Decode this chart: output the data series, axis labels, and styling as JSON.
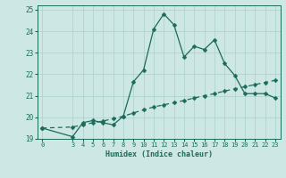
{
  "xlabel": "Humidex (Indice chaleur)",
  "bg_color": "#cde8e4",
  "grid_color": "#b0d4d0",
  "line_color": "#1a6b5a",
  "xlim": [
    -0.5,
    23.5
  ],
  "ylim": [
    19,
    25.2
  ],
  "yticks": [
    19,
    20,
    21,
    22,
    23,
    24,
    25
  ],
  "xticks": [
    0,
    3,
    4,
    5,
    6,
    7,
    8,
    9,
    10,
    11,
    12,
    13,
    14,
    15,
    16,
    17,
    18,
    19,
    20,
    21,
    22,
    23
  ],
  "line1_x": [
    0,
    3,
    4,
    5,
    6,
    7,
    8,
    9,
    10,
    11,
    12,
    13,
    14,
    15,
    16,
    17,
    18,
    19,
    20,
    21,
    22,
    23
  ],
  "line1_y": [
    19.5,
    19.1,
    19.75,
    19.85,
    19.75,
    19.65,
    20.05,
    21.65,
    22.2,
    24.1,
    24.8,
    24.3,
    22.8,
    23.3,
    23.15,
    23.6,
    22.5,
    21.95,
    21.1,
    21.1,
    21.1,
    20.9
  ],
  "line2_x": [
    0,
    3,
    4,
    5,
    6,
    7,
    8,
    9,
    10,
    11,
    12,
    13,
    14,
    15,
    16,
    17,
    18,
    19,
    20,
    21,
    22,
    23
  ],
  "line2_y": [
    19.5,
    19.55,
    19.65,
    19.75,
    19.83,
    19.93,
    20.05,
    20.2,
    20.35,
    20.48,
    20.58,
    20.68,
    20.78,
    20.9,
    21.0,
    21.1,
    21.22,
    21.32,
    21.42,
    21.52,
    21.62,
    21.72
  ],
  "marker_size": 2.5,
  "line_width": 0.9,
  "tick_fontsize": 5.0,
  "xlabel_fontsize": 6.0
}
